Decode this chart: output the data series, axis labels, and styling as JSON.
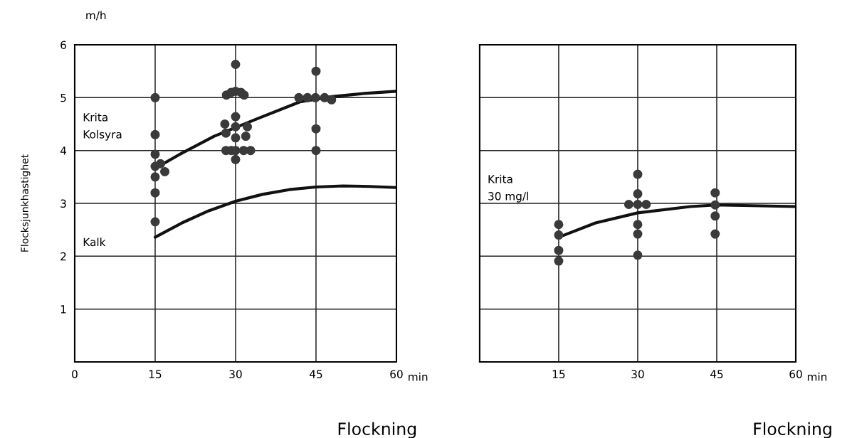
{
  "chart_data": [
    {
      "type": "scatter",
      "ylabel": "Flocksjunkhastighet",
      "xlabel": "Flockning",
      "xlim": [
        0,
        60
      ],
      "ylim": [
        0,
        6
      ],
      "xticks": [
        0,
        15,
        30,
        45,
        60
      ],
      "yticks": [
        1,
        2,
        3,
        4,
        5,
        6
      ],
      "grid": true,
      "annotations": [
        "m/h",
        "Krita\nKolsyra",
        "Kalk",
        "min"
      ],
      "series": [
        {
          "marker": "circle",
          "color": "#3a3a3a",
          "x": [
            15,
            15,
            15,
            15,
            15,
            15,
            15,
            16,
            16.8,
            30,
            28.3,
            29.2,
            30,
            31,
            31.6,
            30,
            28,
            30,
            32.2,
            28.2,
            30,
            31.9,
            28.2,
            29.2,
            30,
            31.5,
            32.8,
            30,
            45,
            41.8,
            43.4,
            44.9,
            46.6,
            47.9,
            45,
            45
          ],
          "values": [
            5.0,
            4.3,
            3.93,
            3.7,
            3.5,
            3.2,
            2.65,
            3.75,
            3.6,
            5.63,
            5.05,
            5.1,
            5.12,
            5.1,
            5.05,
            4.64,
            4.5,
            4.45,
            4.45,
            4.33,
            4.24,
            4.27,
            4.0,
            4.0,
            4.0,
            4.0,
            4.0,
            3.83,
            5.5,
            5.0,
            5.0,
            5.0,
            5.0,
            4.96,
            4.41,
            4.0
          ]
        },
        {
          "type": "line",
          "color": "#111111",
          "x": [
            16,
            20,
            26,
            34,
            42,
            48,
            54,
            60
          ],
          "values": [
            3.72,
            3.95,
            4.27,
            4.6,
            4.92,
            5.02,
            5.08,
            5.12
          ]
        },
        {
          "type": "line",
          "color": "#111111",
          "x": [
            15,
            20,
            25,
            30,
            35,
            40,
            45,
            50,
            55,
            60
          ],
          "values": [
            2.36,
            2.63,
            2.86,
            3.04,
            3.17,
            3.26,
            3.31,
            3.33,
            3.32,
            3.3
          ]
        }
      ]
    },
    {
      "type": "scatter",
      "xlabel": "Flockning",
      "xlim": [
        0,
        60
      ],
      "ylim": [
        0,
        6
      ],
      "xticks": [
        15,
        30,
        45,
        60
      ],
      "yticks": [
        1,
        2,
        3,
        4,
        5,
        6
      ],
      "tick_labels": "x",
      "grid": true,
      "annotations": [
        "Krita\n30 mg/l",
        "min"
      ],
      "series": [
        {
          "marker": "circle",
          "color": "#3a3a3a",
          "x": [
            15,
            15,
            15,
            15,
            30,
            30,
            28.3,
            30,
            31.6,
            30,
            30,
            30,
            44.7,
            44.7,
            44.7,
            44.7
          ],
          "values": [
            2.6,
            2.4,
            2.11,
            1.91,
            3.55,
            3.18,
            2.98,
            2.98,
            2.98,
            2.6,
            2.42,
            2.02,
            3.2,
            2.97,
            2.76,
            2.42
          ]
        },
        {
          "type": "line",
          "color": "#111111",
          "x": [
            15,
            22,
            30,
            40,
            45,
            50,
            60
          ],
          "values": [
            2.36,
            2.63,
            2.82,
            2.94,
            2.97,
            2.96,
            2.94
          ]
        }
      ]
    }
  ]
}
